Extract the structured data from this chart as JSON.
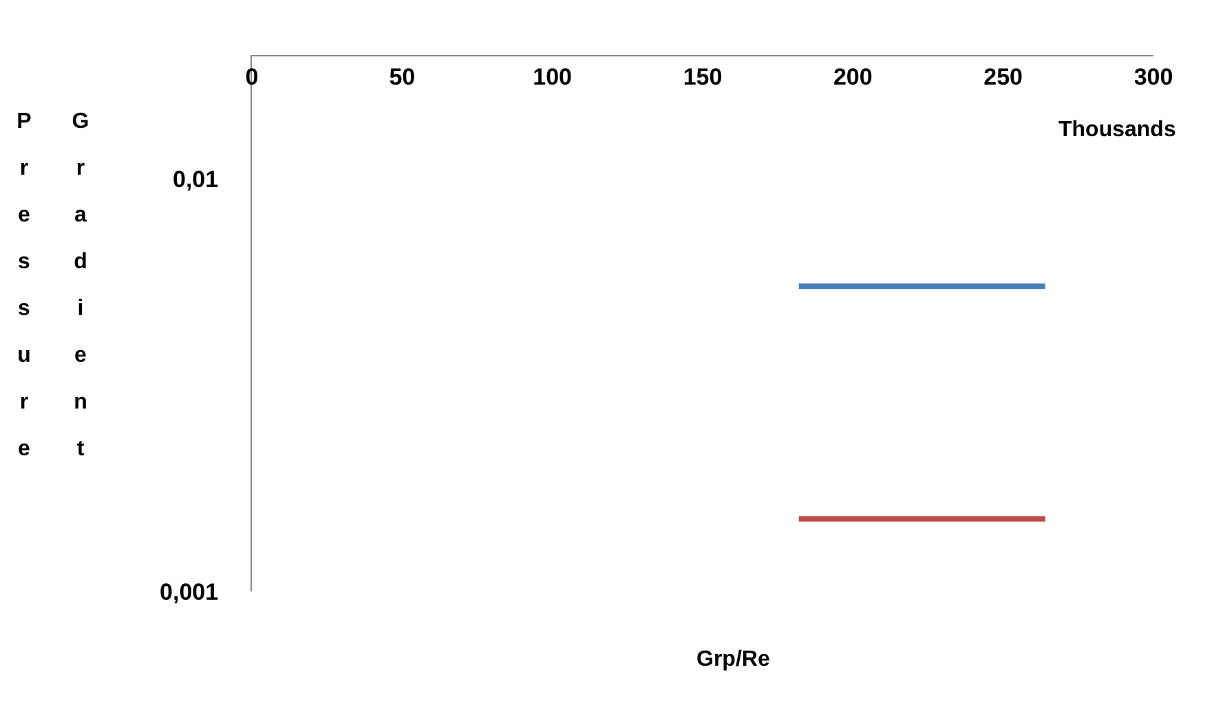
{
  "chart_data": {
    "type": "line",
    "xlabel": "Grp/Re",
    "ylabel": "Pressure Gradient",
    "annotations": [
      "Thousands"
    ],
    "x": [
      182,
      264
    ],
    "series": [
      {
        "color": "#4a7ebb",
        "values": [
          0.0055,
          0.0055
        ]
      },
      {
        "color": "#be4b48",
        "values": [
          0.0015,
          0.0015
        ]
      }
    ],
    "xlim": [
      0,
      300
    ],
    "xticks": [
      0,
      50,
      100,
      150,
      200,
      250,
      300
    ],
    "ylim": [
      0.001,
      0.02
    ],
    "yticks": [
      {
        "value": 0.01,
        "label": "0,01"
      },
      {
        "value": 0.001,
        "label": "0,001"
      }
    ],
    "log": "y",
    "grid": false,
    "marker": "none",
    "line_style": "solid"
  }
}
